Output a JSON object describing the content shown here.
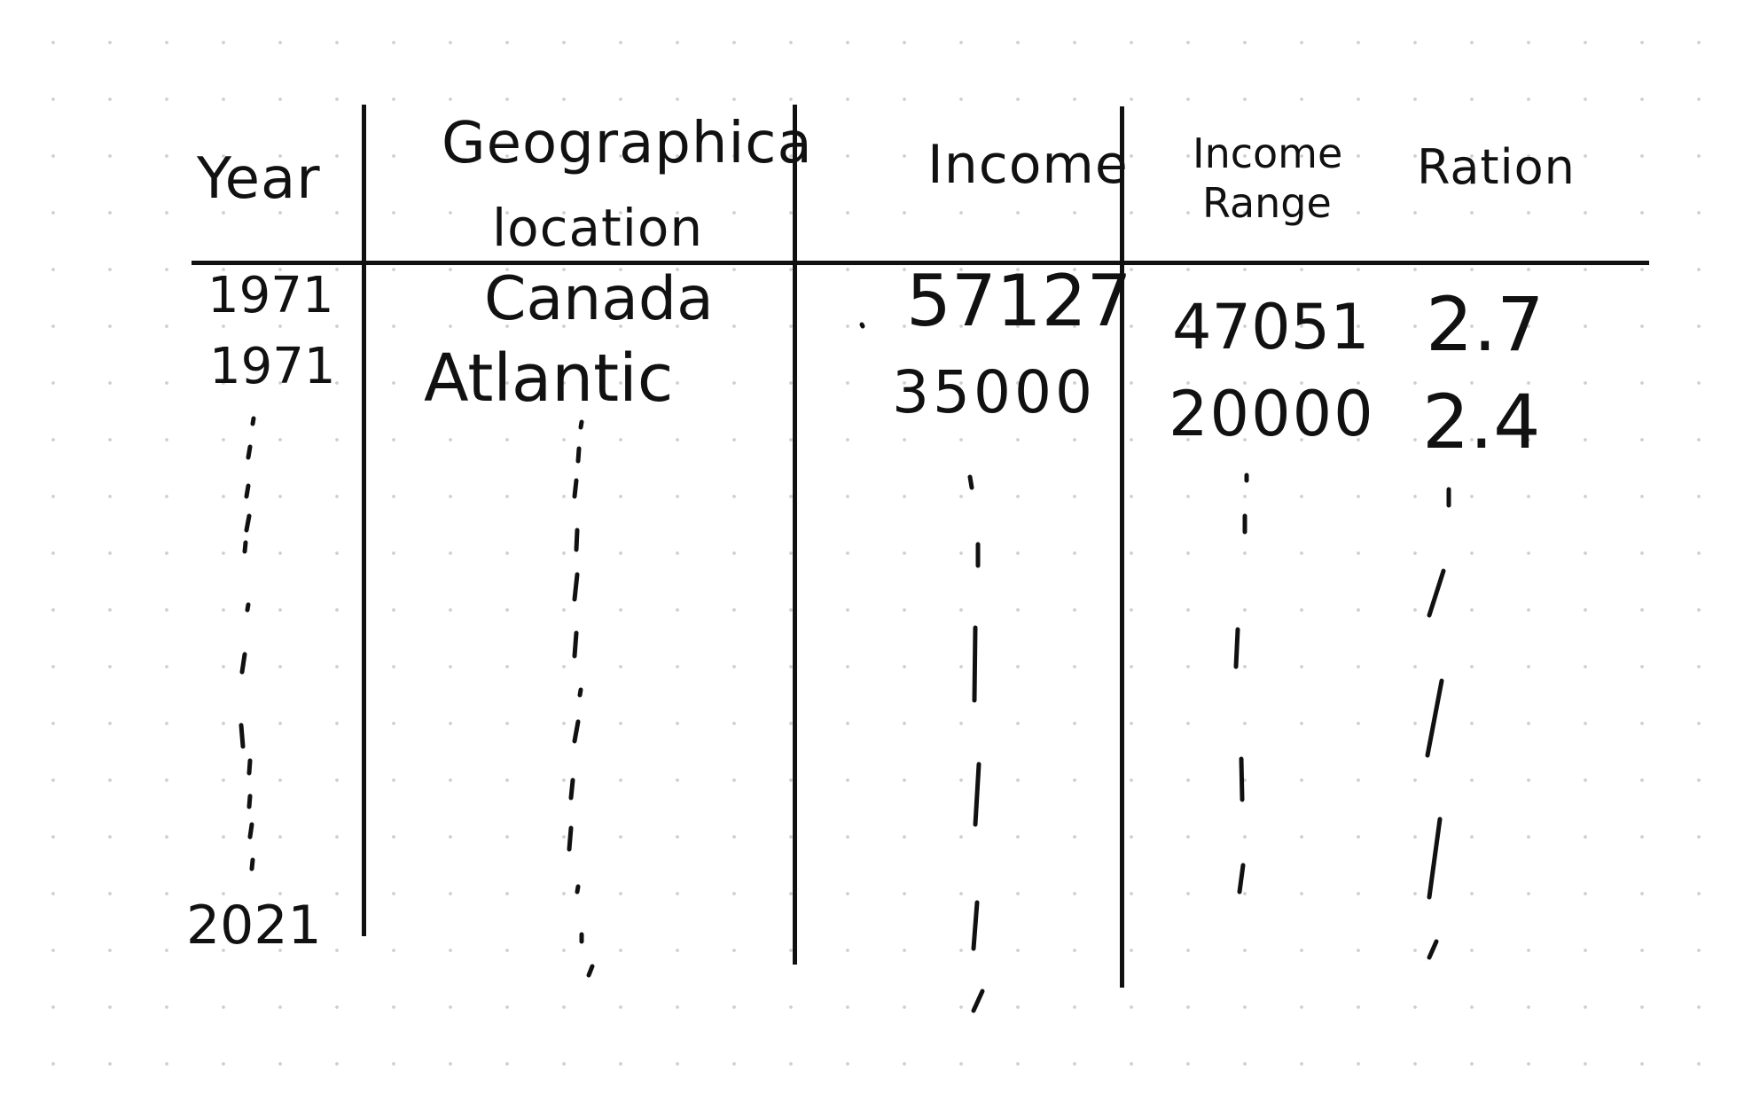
{
  "table": {
    "headers": {
      "year": "Year",
      "location_line1": "Geographica",
      "location_line2": "location",
      "income": "Income",
      "income_range_line1": "Income",
      "income_range_line2": "Range",
      "ratio": "Ration"
    },
    "rows": [
      {
        "year": "1971",
        "location": "Canada",
        "income": "57127",
        "income_range": "47051",
        "ratio": "2.7"
      },
      {
        "year": "1971",
        "location": "Atlantic",
        "income": "35000",
        "income_range": "20000",
        "ratio": "2.4"
      }
    ],
    "last_year": "2021"
  }
}
